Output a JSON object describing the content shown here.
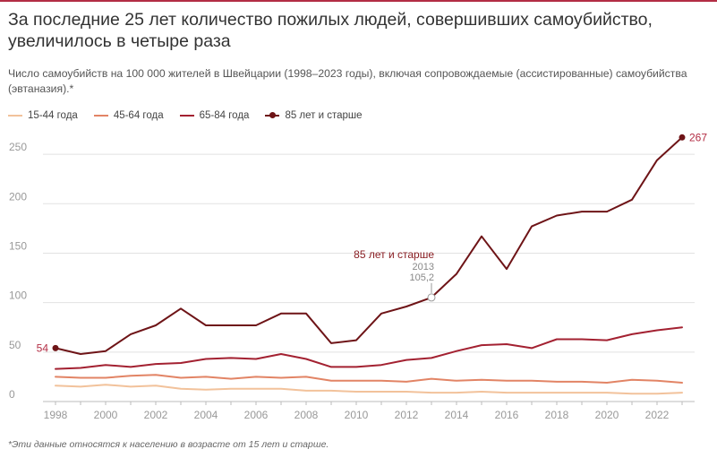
{
  "title": "За последние 25 лет количество пожилых людей, совершивших самоубийство, увеличилось в четыре раза",
  "subtitle": "Число самоубийств на 100 000 жителей в Швейцарии (1998–2023 годы), включая сопровождаемые (ассистированные) самоубийства (эвтаназия).*",
  "footnote": "*Эти данные относятся к населению в возрасте от 15 лет и старше.",
  "colors": {
    "accent": "#b32d44",
    "grid": "#e2e2e2",
    "axis": "#bbbbbb",
    "tick_label": "#999999"
  },
  "chart_data": {
    "type": "line",
    "x": [
      1998,
      1999,
      2000,
      2001,
      2002,
      2003,
      2004,
      2005,
      2006,
      2007,
      2008,
      2009,
      2010,
      2011,
      2012,
      2013,
      2014,
      2015,
      2016,
      2017,
      2018,
      2019,
      2020,
      2021,
      2022,
      2023
    ],
    "xlim": [
      1997.5,
      2023.5
    ],
    "ylim": [
      0,
      270
    ],
    "x_ticks": [
      1998,
      2000,
      2002,
      2004,
      2006,
      2008,
      2010,
      2012,
      2014,
      2016,
      2018,
      2020,
      2022
    ],
    "x_tick_labels": [
      "1998",
      "2000",
      "2002",
      "2004",
      "2006",
      "2008",
      "2010",
      "2012",
      "2014",
      "2016",
      "2018",
      "2020",
      "2022"
    ],
    "y_ticks": [
      0,
      50,
      100,
      150,
      200,
      250
    ],
    "y_tick_labels": [
      "0",
      "50",
      "100",
      "150",
      "200",
      "250"
    ],
    "grid": true,
    "legend_position": "top-left",
    "series": [
      {
        "name": "15-44 года",
        "color": "#f2c29b",
        "values": [
          16,
          15,
          17,
          15,
          16,
          13,
          12,
          13,
          13,
          13,
          11,
          11,
          10,
          10,
          10,
          9,
          9,
          10,
          9,
          9,
          9,
          9,
          9,
          8,
          8,
          9
        ]
      },
      {
        "name": "45-64 года",
        "color": "#e28465",
        "values": [
          25,
          24,
          24,
          26,
          27,
          24,
          25,
          23,
          25,
          24,
          25,
          21,
          21,
          21,
          20,
          23,
          21,
          22,
          21,
          21,
          20,
          20,
          19,
          22,
          21,
          19
        ]
      },
      {
        "name": "65-84 года",
        "color": "#a32131",
        "values": [
          33,
          34,
          37,
          35,
          38,
          39,
          43,
          44,
          43,
          48,
          43,
          35,
          35,
          37,
          42,
          44,
          51,
          57,
          58,
          54,
          63,
          63,
          62,
          68,
          72,
          75
        ]
      },
      {
        "name": "85 лет и старше",
        "color": "#6e1417",
        "values": [
          54,
          48,
          51,
          68,
          77,
          94,
          77,
          77,
          77,
          89,
          89,
          59,
          62,
          89,
          96,
          105.2,
          129,
          167,
          134,
          177,
          188,
          192,
          192,
          204,
          244,
          267
        ]
      }
    ],
    "annotations": {
      "start_label": "54",
      "end_label": "267",
      "callout_series": "85 лет и старше",
      "callout_year": "2013",
      "callout_value": "105,2"
    }
  }
}
